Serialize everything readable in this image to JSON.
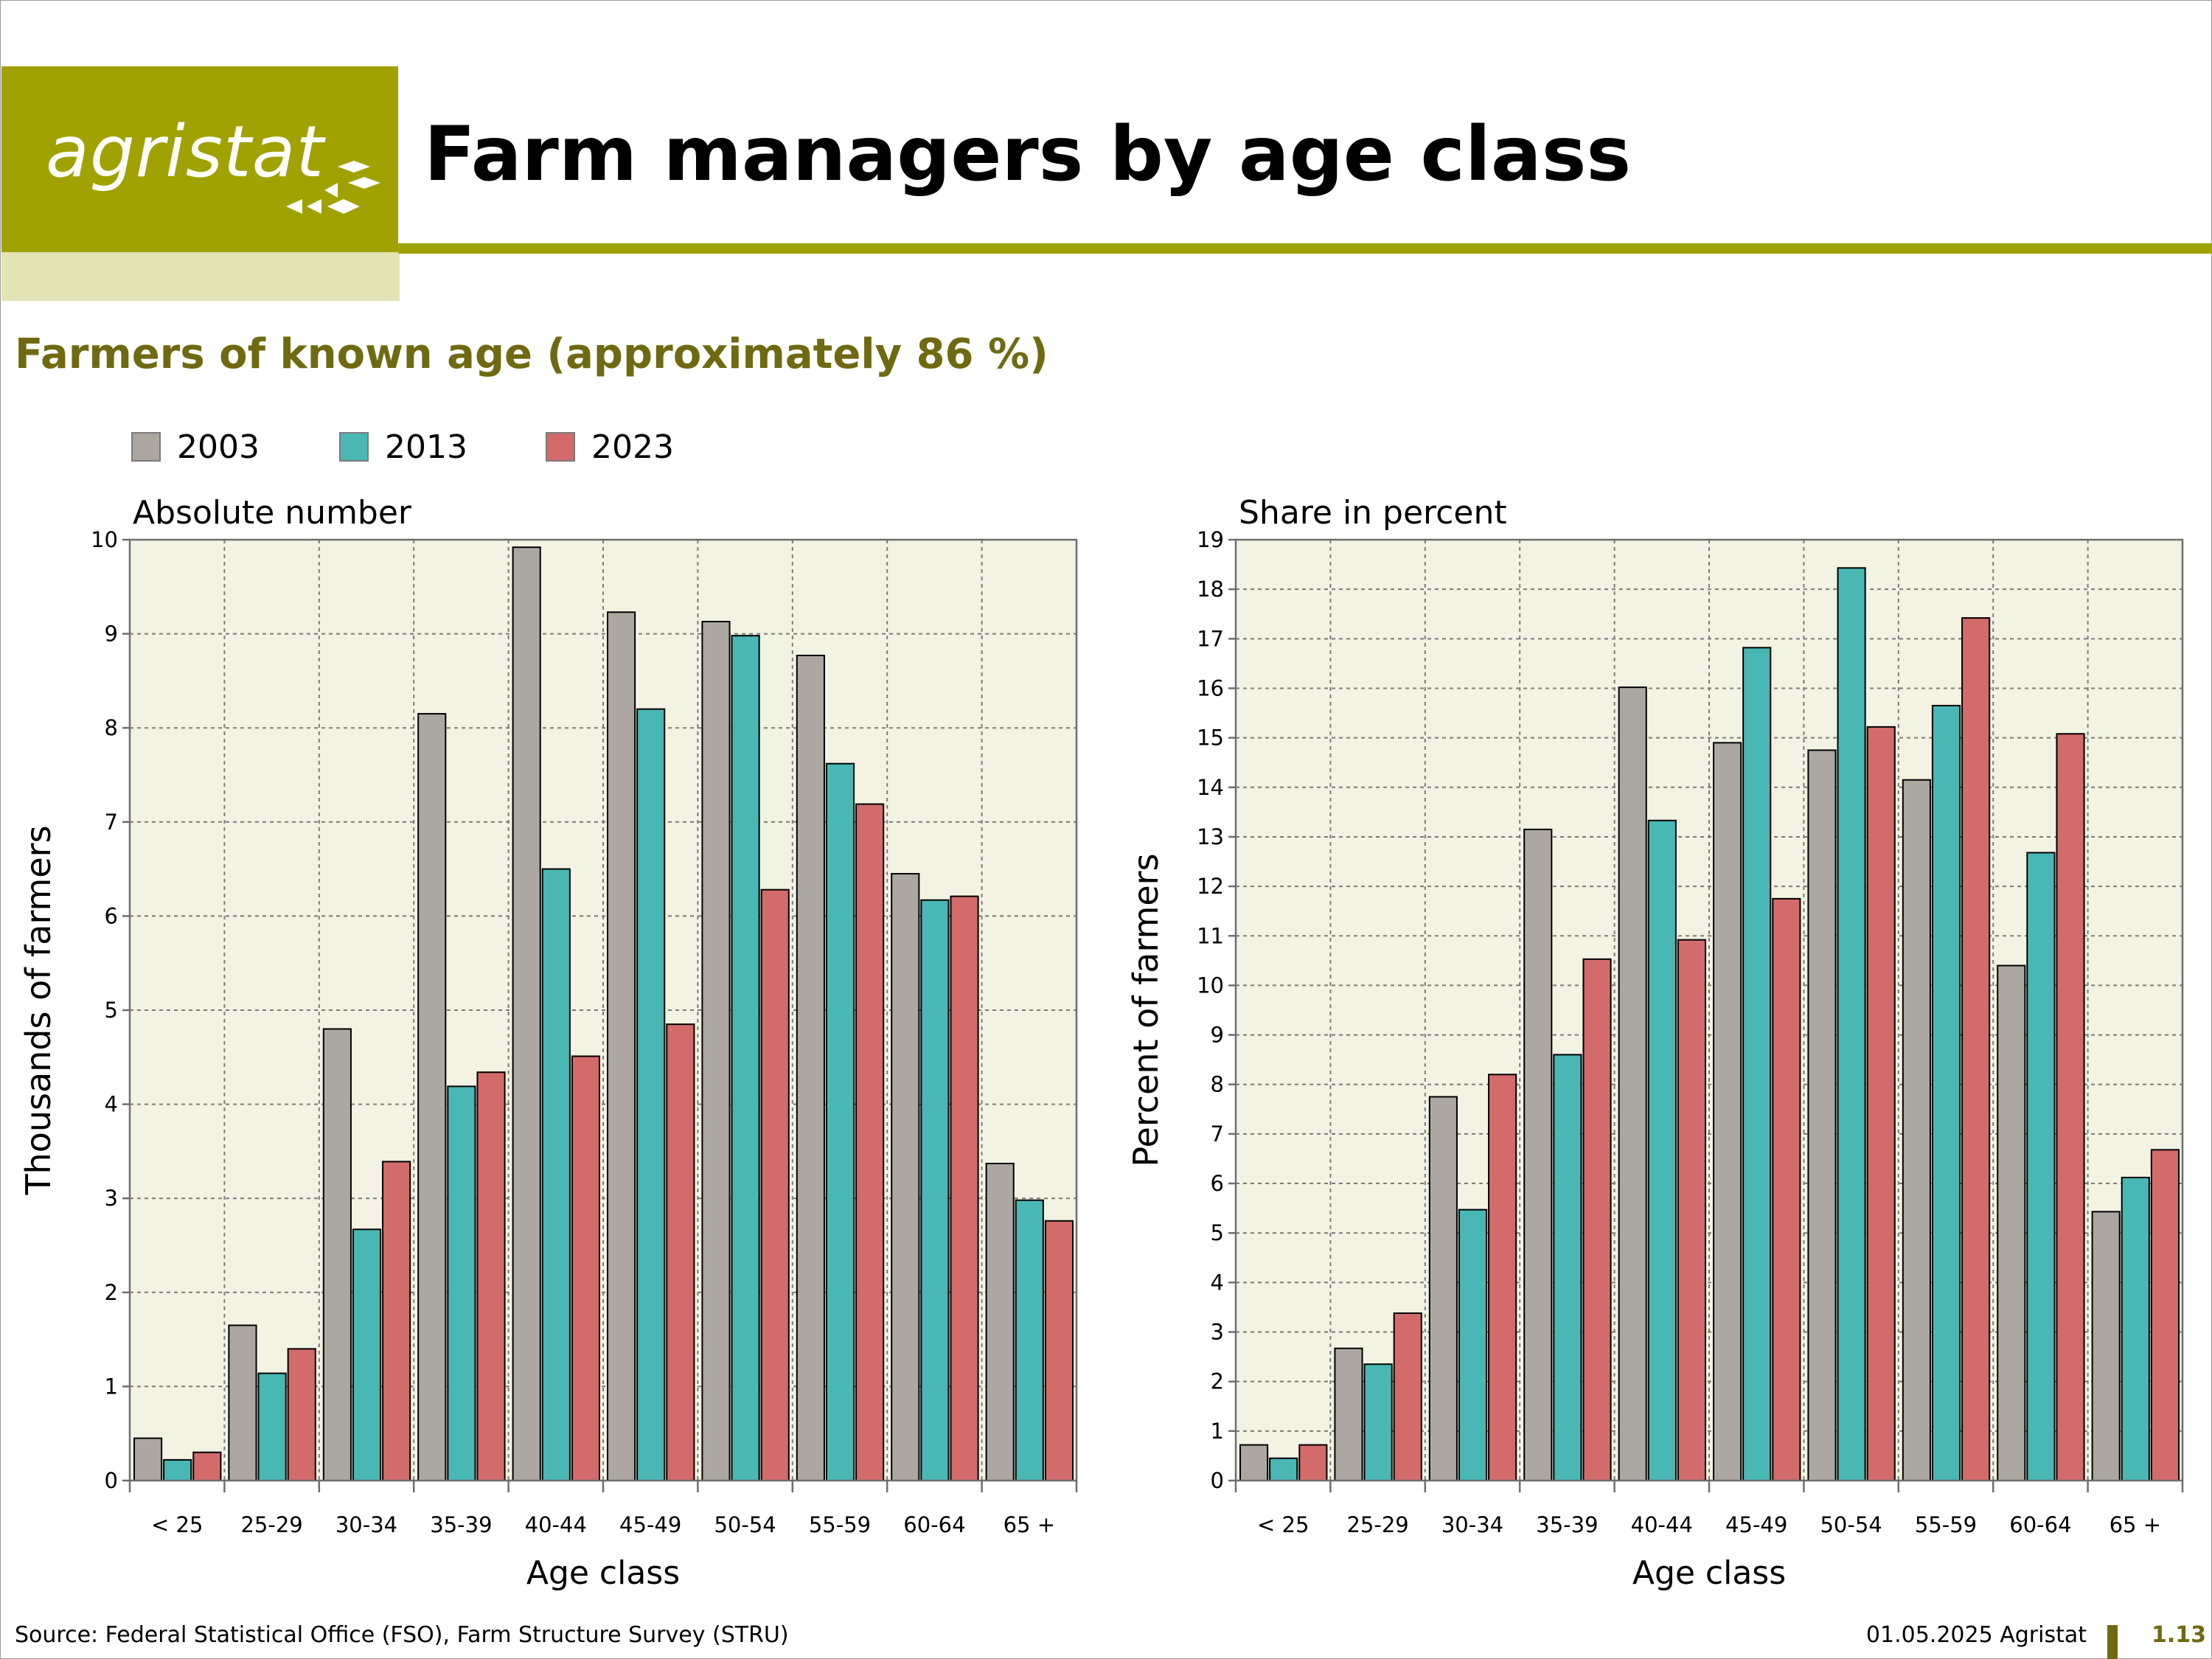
{
  "header": {
    "logo_text": "agristat",
    "title": "Farm managers by age class"
  },
  "subtitle": "Farmers of known age (approximately 86 %)",
  "legend": [
    {
      "label": "2003",
      "color": "#ada7a2"
    },
    {
      "label": "2013",
      "color": "#49b8b5"
    },
    {
      "label": "2023",
      "color": "#d36b6b"
    }
  ],
  "colors": {
    "plot_background": "#f3f3e3",
    "grid": "#7a7a7a",
    "brand": "#9fa200",
    "brand_light": "#e2e4b4",
    "subtitle": "#6f6a12"
  },
  "chart_data": [
    {
      "type": "bar",
      "title": "Absolute number",
      "xlabel": "Age class",
      "ylabel": "Thousands of farmers",
      "ylim": [
        0,
        10
      ],
      "yticks": [
        0,
        1,
        2,
        3,
        4,
        5,
        6,
        7,
        8,
        9,
        10
      ],
      "grid": true,
      "categories": [
        "< 25",
        "25-29",
        "30-34",
        "35-39",
        "40-44",
        "45-49",
        "50-54",
        "55-59",
        "60-64",
        "65 +"
      ],
      "series": [
        {
          "name": "2003",
          "values": [
            0.45,
            1.65,
            4.8,
            8.15,
            9.92,
            9.23,
            9.13,
            8.77,
            6.45,
            3.37
          ]
        },
        {
          "name": "2013",
          "values": [
            0.22,
            1.14,
            2.67,
            4.19,
            6.5,
            8.2,
            8.98,
            7.62,
            6.17,
            2.98
          ]
        },
        {
          "name": "2023",
          "values": [
            0.3,
            1.4,
            3.39,
            4.34,
            4.51,
            4.85,
            6.28,
            7.19,
            6.21,
            2.76
          ]
        }
      ]
    },
    {
      "type": "bar",
      "title": "Share in percent",
      "xlabel": "Age class",
      "ylabel": "Percent of farmers",
      "ylim": [
        0,
        19
      ],
      "yticks": [
        0,
        1,
        2,
        3,
        4,
        5,
        6,
        7,
        8,
        9,
        10,
        11,
        12,
        13,
        14,
        15,
        16,
        17,
        18,
        19
      ],
      "grid": true,
      "categories": [
        "< 25",
        "25-29",
        "30-34",
        "35-39",
        "40-44",
        "45-49",
        "50-54",
        "55-59",
        "60-64",
        "65 +"
      ],
      "series": [
        {
          "name": "2003",
          "values": [
            0.72,
            2.67,
            7.75,
            13.15,
            16.02,
            14.9,
            14.75,
            14.15,
            10.4,
            5.43
          ]
        },
        {
          "name": "2013",
          "values": [
            0.45,
            2.35,
            5.47,
            8.6,
            13.33,
            16.82,
            18.43,
            15.65,
            12.68,
            6.12
          ]
        },
        {
          "name": "2023",
          "values": [
            0.72,
            3.38,
            8.2,
            10.53,
            10.92,
            11.75,
            15.22,
            17.42,
            15.08,
            6.68
          ]
        }
      ]
    }
  ],
  "footer": {
    "source": "Source: Federal Statistical Office (FSO), Farm Structure Survey (STRU)",
    "date": "01.05.2025 Agristat",
    "page": "1.13"
  }
}
